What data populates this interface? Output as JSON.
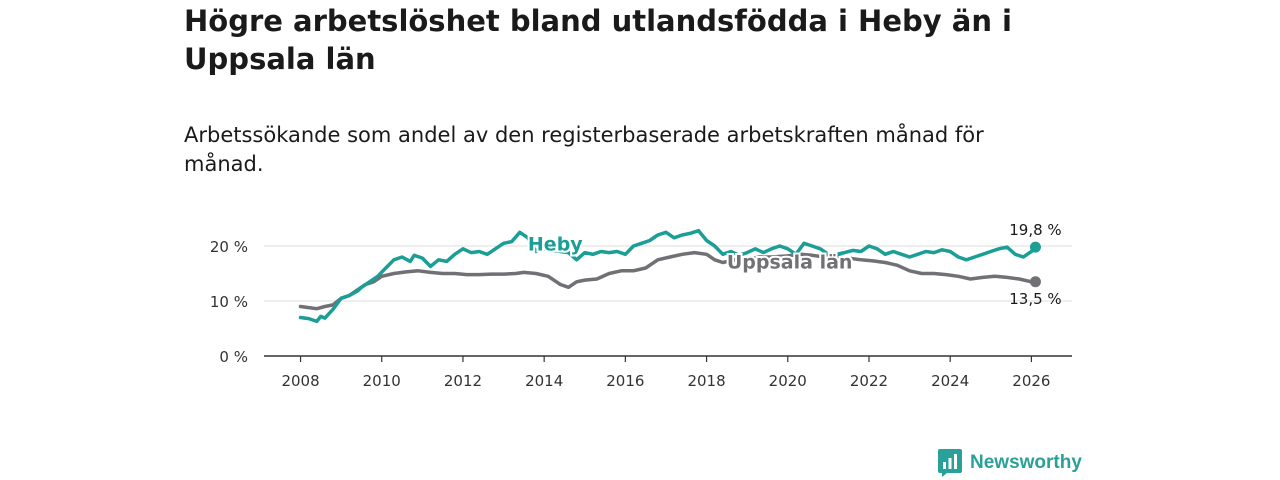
{
  "title": "Högre arbetslöshet bland utlandsfödda i Heby än i Uppsala län",
  "subtitle": "Arbetssökande som andel av den registerbaserade arbetskraften månad för månad.",
  "brand": {
    "name": "Newsworthy",
    "icon": "newsworthy-logo-icon"
  },
  "colors": {
    "heby": "#1a9e96",
    "uppsala": "#707075",
    "axis": "#333333",
    "grid": "#dddddd"
  },
  "chart_data": {
    "type": "line",
    "title": "Högre arbetslöshet bland utlandsfödda i Heby än i Uppsala län",
    "subtitle": "Arbetssökande som andel av den registerbaserade arbetskraften månad för månad.",
    "xlabel": "",
    "ylabel": "",
    "xlim": [
      2007.1,
      2027.0
    ],
    "ylim": [
      0,
      22
    ],
    "x_ticks": [
      2008,
      2010,
      2012,
      2014,
      2016,
      2018,
      2020,
      2022,
      2024,
      2026
    ],
    "x_tick_labels": [
      "2008",
      "2010",
      "2012",
      "2014",
      "2016",
      "2018",
      "2020",
      "2022",
      "2024",
      "2026"
    ],
    "y_ticks": [
      0,
      10,
      20
    ],
    "y_tick_labels": [
      "0 %",
      "10 %",
      "20 %"
    ],
    "grid": true,
    "legend": "inline",
    "series": [
      {
        "name": "Heby",
        "label": "Heby",
        "end_label": "19,8 %",
        "x": [
          2008.0,
          2008.2,
          2008.4,
          2008.5,
          2008.6,
          2008.8,
          2009.0,
          2009.2,
          2009.4,
          2009.5,
          2009.7,
          2009.9,
          2010.1,
          2010.3,
          2010.5,
          2010.7,
          2010.8,
          2011.0,
          2011.2,
          2011.4,
          2011.6,
          2011.8,
          2012.0,
          2012.2,
          2012.4,
          2012.6,
          2012.8,
          2013.0,
          2013.2,
          2013.4,
          2013.6,
          2013.8,
          2014.0,
          2014.2,
          2014.4,
          2014.6,
          2014.8,
          2015.0,
          2015.2,
          2015.4,
          2015.6,
          2015.8,
          2016.0,
          2016.2,
          2016.4,
          2016.6,
          2016.8,
          2017.0,
          2017.2,
          2017.4,
          2017.6,
          2017.8,
          2018.0,
          2018.2,
          2018.4,
          2018.6,
          2018.8,
          2019.0,
          2019.2,
          2019.4,
          2019.6,
          2019.8,
          2020.0,
          2020.2,
          2020.4,
          2020.6,
          2020.8,
          2021.0,
          2021.2,
          2021.4,
          2021.6,
          2021.8,
          2022.0,
          2022.2,
          2022.4,
          2022.6,
          2022.8,
          2023.0,
          2023.2,
          2023.4,
          2023.6,
          2023.8,
          2024.0,
          2024.2,
          2024.4,
          2024.6,
          2024.8,
          2025.0,
          2025.2,
          2025.4,
          2025.6,
          2025.8,
          2026.0,
          2026.1
        ],
        "values": [
          7.0,
          6.8,
          6.3,
          7.2,
          6.9,
          8.5,
          10.5,
          11.0,
          11.8,
          12.5,
          13.5,
          14.5,
          16.0,
          17.5,
          18.0,
          17.2,
          18.3,
          17.8,
          16.3,
          17.5,
          17.2,
          18.5,
          19.5,
          18.8,
          19.0,
          18.5,
          19.5,
          20.5,
          20.8,
          22.5,
          21.5,
          19.0,
          19.5,
          19.2,
          19.0,
          18.8,
          17.5,
          18.8,
          18.5,
          19.0,
          18.8,
          19.0,
          18.5,
          20.0,
          20.5,
          21.0,
          22.0,
          22.5,
          21.5,
          22.0,
          22.3,
          22.8,
          21.0,
          20.0,
          18.5,
          19.0,
          18.3,
          18.8,
          19.5,
          18.8,
          19.5,
          20.0,
          19.5,
          18.5,
          20.5,
          20.0,
          19.5,
          18.5,
          18.5,
          18.8,
          19.2,
          19.0,
          20.0,
          19.5,
          18.5,
          19.0,
          18.5,
          18.0,
          18.5,
          19.0,
          18.8,
          19.3,
          19.0,
          18.0,
          17.5,
          18.0,
          18.5,
          19.0,
          19.5,
          19.8,
          18.5,
          18.0,
          19.0,
          19.8
        ]
      },
      {
        "name": "Uppsala län",
        "label": "Uppsala län",
        "end_label": "13,5 %",
        "x": [
          2008.0,
          2008.2,
          2008.4,
          2008.6,
          2008.8,
          2009.0,
          2009.2,
          2009.4,
          2009.6,
          2009.8,
          2010.0,
          2010.3,
          2010.6,
          2010.9,
          2011.2,
          2011.5,
          2011.8,
          2012.1,
          2012.4,
          2012.7,
          2013.0,
          2013.3,
          2013.5,
          2013.8,
          2014.1,
          2014.4,
          2014.6,
          2014.8,
          2015.0,
          2015.3,
          2015.6,
          2015.9,
          2016.2,
          2016.5,
          2016.8,
          2017.1,
          2017.4,
          2017.7,
          2018.0,
          2018.2,
          2018.4,
          2018.7,
          2019.0,
          2019.3,
          2019.6,
          2020.0,
          2020.3,
          2020.6,
          2020.9,
          2021.2,
          2021.5,
          2021.8,
          2022.1,
          2022.4,
          2022.7,
          2023.0,
          2023.3,
          2023.6,
          2023.9,
          2024.2,
          2024.5,
          2024.8,
          2025.1,
          2025.4,
          2025.7,
          2026.0,
          2026.1
        ],
        "values": [
          9.0,
          8.8,
          8.6,
          9.0,
          9.3,
          10.5,
          11.0,
          12.0,
          13.0,
          13.5,
          14.5,
          15.0,
          15.3,
          15.5,
          15.2,
          15.0,
          15.0,
          14.8,
          14.8,
          14.9,
          14.9,
          15.0,
          15.2,
          15.0,
          14.5,
          13.0,
          12.5,
          13.5,
          13.8,
          14.0,
          15.0,
          15.5,
          15.5,
          16.0,
          17.5,
          18.0,
          18.5,
          18.8,
          18.5,
          17.5,
          17.0,
          17.5,
          17.5,
          18.0,
          18.0,
          18.2,
          18.5,
          18.3,
          18.0,
          18.0,
          17.8,
          17.5,
          17.3,
          17.0,
          16.5,
          15.5,
          15.0,
          15.0,
          14.8,
          14.5,
          14.0,
          14.3,
          14.5,
          14.3,
          14.0,
          13.5,
          13.5
        ]
      }
    ]
  }
}
